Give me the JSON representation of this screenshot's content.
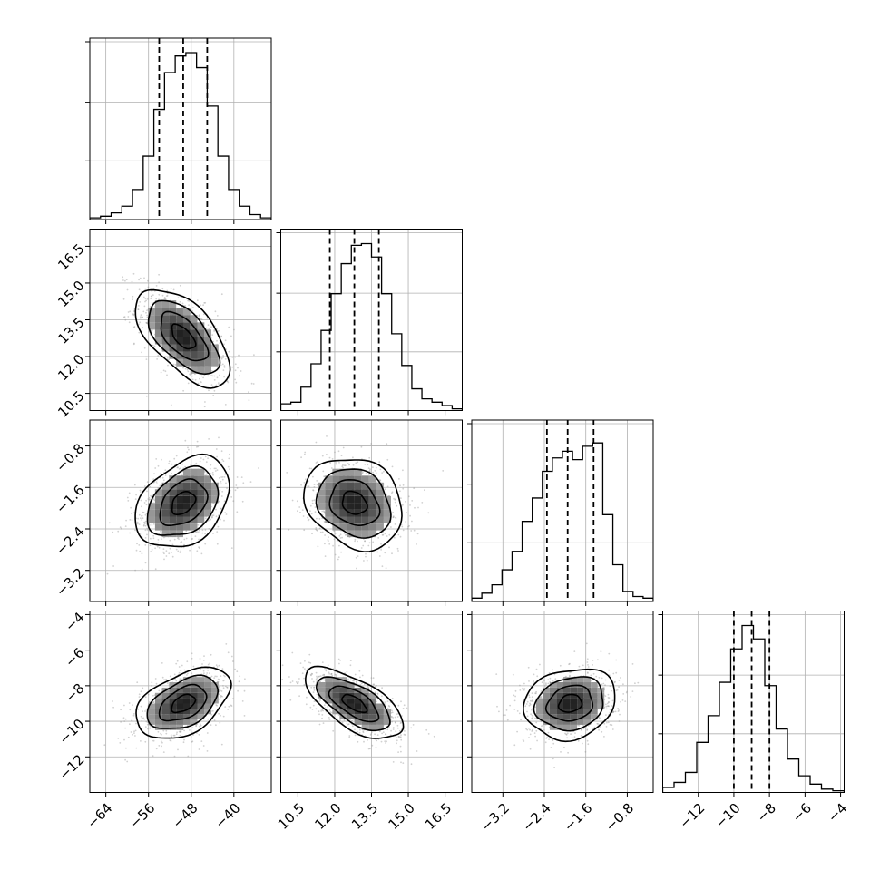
{
  "chart_data": {
    "type": "corner",
    "grid": true,
    "parameters": [
      {
        "range": [
          -67,
          -33
        ],
        "ticks": [
          -64,
          -56,
          -48,
          -40
        ],
        "tick_labels": [
          "−64",
          "−56",
          "−48",
          "−40"
        ],
        "mean": -49.5,
        "sd": 4.2,
        "quantiles": [
          -54.0,
          -49.5,
          -45.0
        ],
        "hist": [
          0.01,
          0.02,
          0.04,
          0.08,
          0.18,
          0.38,
          0.66,
          0.88,
          0.98,
          1.0,
          0.91,
          0.68,
          0.38,
          0.18,
          0.08,
          0.03,
          0.01
        ]
      },
      {
        "range": [
          9.8,
          17.2
        ],
        "ticks": [
          10.5,
          12.0,
          13.5,
          15.0,
          16.5
        ],
        "tick_labels": [
          "10.5",
          "12.0",
          "13.5",
          "15.0",
          "16.5"
        ],
        "mean": 12.8,
        "sd": 0.95,
        "quantiles": [
          11.8,
          12.8,
          13.8
        ],
        "hist": [
          0.04,
          0.05,
          0.14,
          0.28,
          0.48,
          0.7,
          0.88,
          0.99,
          1.0,
          0.92,
          0.7,
          0.46,
          0.27,
          0.13,
          0.07,
          0.05,
          0.03,
          0.01
        ]
      },
      {
        "range": [
          -3.8,
          -0.3
        ],
        "ticks": [
          -3.2,
          -2.4,
          -1.6,
          -0.8
        ],
        "tick_labels": [
          "−3.2",
          "−2.4",
          "−1.6",
          "−0.8"
        ],
        "mean": -1.9,
        "sd": 0.42,
        "quantiles": [
          -2.35,
          -1.95,
          -1.45
        ],
        "hist": [
          0.02,
          0.05,
          0.1,
          0.19,
          0.3,
          0.48,
          0.62,
          0.78,
          0.86,
          0.9,
          0.85,
          0.93,
          0.95,
          0.52,
          0.22,
          0.06,
          0.03,
          0.02
        ]
      },
      {
        "range": [
          -14,
          -3.8
        ],
        "ticks": [
          -12,
          -10,
          -8,
          -6,
          -4
        ],
        "tick_labels": [
          "−12",
          "−10",
          "−8",
          "−6",
          "−4"
        ],
        "mean": -9.0,
        "sd": 0.95,
        "quantiles": [
          -10.0,
          -9.0,
          -8.0
        ],
        "hist": [
          0.03,
          0.06,
          0.12,
          0.3,
          0.46,
          0.66,
          0.86,
          1.0,
          0.92,
          0.64,
          0.38,
          0.2,
          0.1,
          0.05,
          0.02,
          0.01
        ]
      }
    ],
    "correlations": {
      "1-0": -0.6,
      "2-0": 0.35,
      "2-1": -0.2,
      "3-0": 0.45,
      "3-1": -0.65,
      "3-2": 0.15
    },
    "contour_levels_sigma": [
      0.5,
      1.0,
      1.5,
      2.0
    ]
  }
}
